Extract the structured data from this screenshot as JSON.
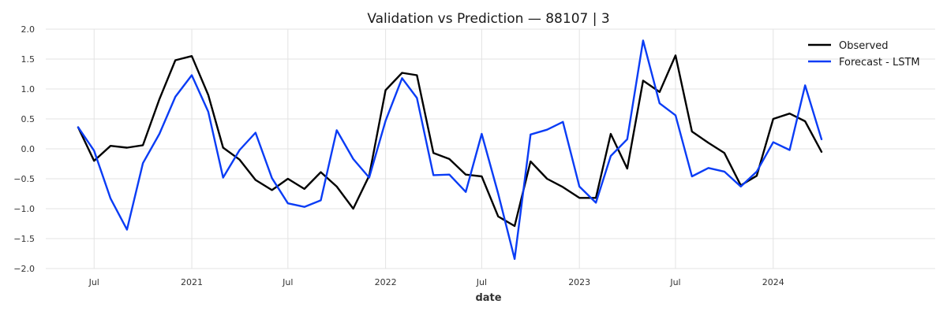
{
  "chart_data": {
    "type": "line",
    "title": "Validation vs Prediction — 88107 | 3",
    "xlabel": "date",
    "ylabel": "",
    "ylim": [
      -2.0,
      2.0
    ],
    "yticks": [
      "2.0",
      "1.5",
      "1.0",
      "0.5",
      "0.0",
      "−0.5",
      "−1.0",
      "−1.5",
      "−2.0"
    ],
    "ytick_values": [
      2.0,
      1.5,
      1.0,
      0.5,
      0.0,
      -0.5,
      -1.0,
      -1.5,
      -2.0
    ],
    "xlim": [
      "2020-04-01",
      "2024-11-01"
    ],
    "xticks": [
      {
        "label": "Jul",
        "date": "2020-07-01"
      },
      {
        "label": "2021",
        "date": "2021-01-01"
      },
      {
        "label": "Jul",
        "date": "2021-07-01"
      },
      {
        "label": "2022",
        "date": "2022-01-01"
      },
      {
        "label": "Jul",
        "date": "2022-07-01"
      },
      {
        "label": "2023",
        "date": "2023-01-01"
      },
      {
        "label": "Jul",
        "date": "2023-07-01"
      },
      {
        "label": "2024",
        "date": "2024-01-01"
      }
    ],
    "grid": true,
    "legend_position": "top-right",
    "x": [
      "2020-06-01",
      "2020-07-01",
      "2020-08-01",
      "2020-09-01",
      "2020-10-01",
      "2020-11-01",
      "2020-12-01",
      "2021-01-01",
      "2021-02-01",
      "2021-03-01",
      "2021-04-01",
      "2021-05-01",
      "2021-06-01",
      "2021-07-01",
      "2021-08-01",
      "2021-09-01",
      "2021-10-01",
      "2021-11-01",
      "2021-12-01",
      "2022-01-01",
      "2022-02-01",
      "2022-03-01",
      "2022-04-01",
      "2022-05-01",
      "2022-06-01",
      "2022-07-01",
      "2022-08-01",
      "2022-09-01",
      "2022-10-01",
      "2022-11-01",
      "2022-12-01",
      "2023-01-01",
      "2023-02-01",
      "2023-03-01",
      "2023-04-01",
      "2023-05-01",
      "2023-06-01",
      "2023-07-01",
      "2023-08-01",
      "2023-09-01",
      "2023-10-01",
      "2023-11-01",
      "2023-12-01",
      "2024-01-01",
      "2024-02-01",
      "2024-03-01",
      "2024-04-01"
    ],
    "series": [
      {
        "name": "Observed",
        "color": "#000000",
        "values": [
          0.36,
          -0.2,
          0.05,
          0.02,
          0.06,
          0.83,
          1.48,
          1.55,
          0.9,
          0.02,
          -0.18,
          -0.52,
          -0.69,
          -0.5,
          -0.67,
          -0.39,
          -0.63,
          -1.0,
          -0.45,
          0.98,
          1.27,
          1.23,
          -0.07,
          -0.17,
          -0.43,
          -0.46,
          -1.13,
          -1.29,
          -0.21,
          -0.5,
          -0.64,
          -0.82,
          -0.82,
          0.25,
          -0.33,
          1.14,
          0.95,
          1.56,
          0.29,
          0.1,
          -0.07,
          -0.61,
          -0.45,
          0.5,
          0.59,
          0.46,
          -0.05
        ]
      },
      {
        "name": "Forecast - LSTM",
        "color": "#0a3cf5",
        "values": [
          0.36,
          -0.03,
          -0.83,
          -1.35,
          -0.24,
          0.25,
          0.87,
          1.23,
          0.62,
          -0.48,
          -0.02,
          0.27,
          -0.49,
          -0.91,
          -0.97,
          -0.86,
          0.31,
          -0.17,
          -0.48,
          0.47,
          1.18,
          0.85,
          -0.44,
          -0.43,
          -0.72,
          0.25,
          -0.75,
          -1.84,
          0.24,
          0.32,
          0.45,
          -0.63,
          -0.9,
          -0.12,
          0.16,
          1.81,
          0.76,
          0.56,
          -0.46,
          -0.32,
          -0.38,
          -0.63,
          -0.38,
          0.11,
          -0.02,
          1.06,
          0.16
        ]
      }
    ]
  }
}
